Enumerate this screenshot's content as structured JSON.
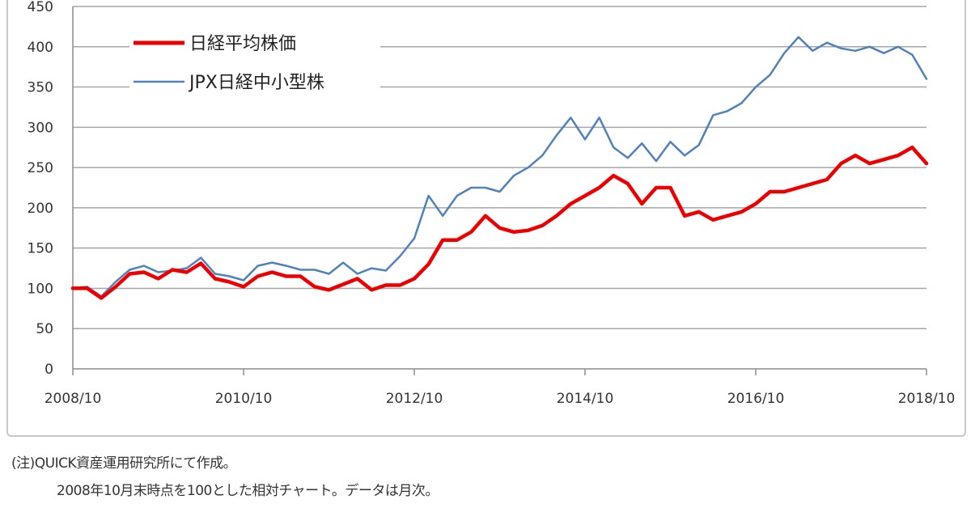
{
  "chart_data": {
    "type": "line",
    "title": "",
    "xlabel": "",
    "ylabel": "",
    "ylim": [
      0,
      450
    ],
    "yticks": [
      0,
      50,
      100,
      150,
      200,
      250,
      300,
      350,
      400,
      450
    ],
    "xlim": [
      "2008/10",
      "2018/10"
    ],
    "xticks": [
      "2008/10",
      "2010/10",
      "2012/10",
      "2014/10",
      "2016/10",
      "2018/10"
    ],
    "grid": "horizontal",
    "legend_position": "top-left",
    "series": [
      {
        "name": "日経平均株価",
        "color": "#ee0000",
        "line_width": "thick",
        "x": [
          "2008/10",
          "2008/12",
          "2009/02",
          "2009/04",
          "2009/06",
          "2009/08",
          "2009/10",
          "2009/12",
          "2010/02",
          "2010/04",
          "2010/06",
          "2010/08",
          "2010/10",
          "2010/12",
          "2011/02",
          "2011/04",
          "2011/06",
          "2011/08",
          "2011/10",
          "2011/12",
          "2012/02",
          "2012/04",
          "2012/06",
          "2012/08",
          "2012/10",
          "2012/12",
          "2013/02",
          "2013/04",
          "2013/06",
          "2013/08",
          "2013/10",
          "2013/12",
          "2014/02",
          "2014/04",
          "2014/06",
          "2014/08",
          "2014/10",
          "2014/12",
          "2015/02",
          "2015/04",
          "2015/06",
          "2015/08",
          "2015/10",
          "2015/12",
          "2016/02",
          "2016/04",
          "2016/06",
          "2016/08",
          "2016/10",
          "2016/12",
          "2017/02",
          "2017/04",
          "2017/06",
          "2017/08",
          "2017/10",
          "2017/12",
          "2018/02",
          "2018/04",
          "2018/06",
          "2018/08",
          "2018/10"
        ],
        "values": [
          100,
          100,
          88,
          102,
          118,
          120,
          112,
          123,
          120,
          131,
          112,
          108,
          102,
          115,
          120,
          115,
          115,
          102,
          98,
          105,
          112,
          98,
          104,
          104,
          112,
          130,
          160,
          160,
          170,
          190,
          175,
          170,
          172,
          178,
          190,
          205,
          215,
          225,
          240,
          230,
          205,
          225,
          225,
          190,
          195,
          185,
          190,
          195,
          205,
          220,
          220,
          225,
          230,
          235,
          255,
          265,
          255,
          260,
          265,
          275,
          255
        ]
      },
      {
        "name": "JPX日経中小型株",
        "color": "#4f81bd",
        "line_width": "thin",
        "x": [
          "2008/10",
          "2008/12",
          "2009/02",
          "2009/04",
          "2009/06",
          "2009/08",
          "2009/10",
          "2009/12",
          "2010/02",
          "2010/04",
          "2010/06",
          "2010/08",
          "2010/10",
          "2010/12",
          "2011/02",
          "2011/04",
          "2011/06",
          "2011/08",
          "2011/10",
          "2011/12",
          "2012/02",
          "2012/04",
          "2012/06",
          "2012/08",
          "2012/10",
          "2012/12",
          "2013/02",
          "2013/04",
          "2013/06",
          "2013/08",
          "2013/10",
          "2013/12",
          "2014/02",
          "2014/04",
          "2014/06",
          "2014/08",
          "2014/10",
          "2014/12",
          "2015/02",
          "2015/04",
          "2015/06",
          "2015/08",
          "2015/10",
          "2015/12",
          "2016/02",
          "2016/04",
          "2016/06",
          "2016/08",
          "2016/10",
          "2016/12",
          "2017/02",
          "2017/04",
          "2017/06",
          "2017/08",
          "2017/10",
          "2017/12",
          "2018/02",
          "2018/04",
          "2018/06",
          "2018/08",
          "2018/10"
        ],
        "values": [
          100,
          102,
          90,
          108,
          123,
          128,
          120,
          122,
          125,
          138,
          118,
          115,
          110,
          128,
          132,
          128,
          123,
          123,
          118,
          132,
          118,
          125,
          122,
          140,
          162,
          215,
          190,
          215,
          225,
          225,
          220,
          240,
          250,
          265,
          290,
          312,
          285,
          312,
          275,
          262,
          280,
          258,
          282,
          265,
          278,
          315,
          320,
          330,
          350,
          365,
          392,
          412,
          395,
          405,
          398,
          395,
          400,
          392,
          400,
          390,
          360
        ]
      }
    ]
  },
  "notes": {
    "line1": "(注)QUICK資産運用研究所にて作成。",
    "line2": "2008年10月末時点を100とした相対チャート。データは月次。"
  }
}
